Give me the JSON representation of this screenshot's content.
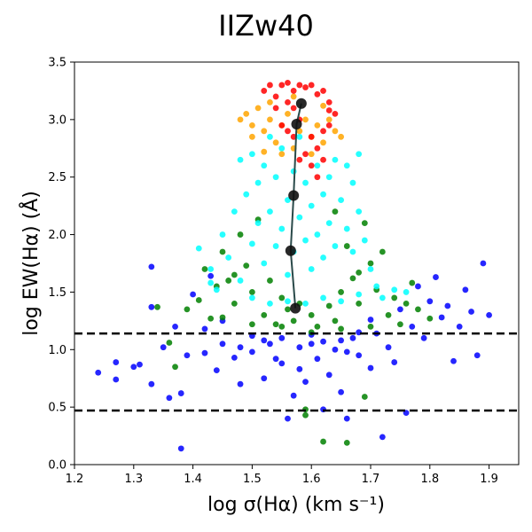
{
  "chart_data": {
    "type": "scatter",
    "title": "IIZw40",
    "xlabel": "log σ(Hα) (km s⁻¹)",
    "ylabel": "log EW(Hα) (Å)",
    "xlim": [
      1.2,
      1.95
    ],
    "ylim": [
      0.0,
      3.5
    ],
    "xticks": [
      "1.2",
      "1.3",
      "1.4",
      "1.5",
      "1.6",
      "1.7",
      "1.8",
      "1.9"
    ],
    "yticks": [
      "0.0",
      "0.5",
      "1.0",
      "1.5",
      "2.0",
      "2.5",
      "3.0",
      "3.5"
    ],
    "hlines": [
      1.14,
      0.47
    ],
    "series": [
      {
        "name": "blue",
        "color": "#0000ff",
        "points": [
          [
            1.24,
            0.8
          ],
          [
            1.27,
            0.74
          ],
          [
            1.27,
            0.89
          ],
          [
            1.3,
            0.85
          ],
          [
            1.31,
            0.87
          ],
          [
            1.33,
            0.7
          ],
          [
            1.33,
            1.37
          ],
          [
            1.33,
            1.72
          ],
          [
            1.35,
            1.02
          ],
          [
            1.36,
            0.58
          ],
          [
            1.37,
            1.2
          ],
          [
            1.38,
            0.14
          ],
          [
            1.38,
            0.62
          ],
          [
            1.39,
            0.95
          ],
          [
            1.4,
            1.48
          ],
          [
            1.42,
            0.97
          ],
          [
            1.43,
            1.64
          ],
          [
            1.44,
            0.82
          ],
          [
            1.45,
            1.25
          ],
          [
            1.47,
            0.93
          ],
          [
            1.48,
            0.7
          ],
          [
            1.5,
            0.98
          ],
          [
            1.52,
            0.75
          ],
          [
            1.53,
            1.05
          ],
          [
            1.54,
            0.92
          ],
          [
            1.55,
            0.88
          ],
          [
            1.56,
            0.4
          ],
          [
            1.57,
            0.6
          ],
          [
            1.58,
            1.02
          ],
          [
            1.59,
            0.72
          ],
          [
            1.6,
            1.05
          ],
          [
            1.61,
            0.92
          ],
          [
            1.62,
            0.48
          ],
          [
            1.63,
            0.78
          ],
          [
            1.64,
            1.0
          ],
          [
            1.65,
            0.63
          ],
          [
            1.66,
            0.4
          ],
          [
            1.67,
            1.1
          ],
          [
            1.68,
            0.95
          ],
          [
            1.7,
            0.84
          ],
          [
            1.71,
            1.14
          ],
          [
            1.72,
            0.24
          ],
          [
            1.73,
            1.02
          ],
          [
            1.74,
            0.89
          ],
          [
            1.75,
            1.35
          ],
          [
            1.76,
            0.45
          ],
          [
            1.77,
            1.2
          ],
          [
            1.78,
            1.55
          ],
          [
            1.79,
            1.1
          ],
          [
            1.8,
            1.42
          ],
          [
            1.81,
            1.63
          ],
          [
            1.82,
            1.28
          ],
          [
            1.83,
            1.38
          ],
          [
            1.84,
            0.9
          ],
          [
            1.85,
            1.2
          ],
          [
            1.86,
            1.52
          ],
          [
            1.87,
            1.33
          ],
          [
            1.88,
            0.95
          ],
          [
            1.89,
            1.75
          ],
          [
            1.9,
            1.3
          ],
          [
            1.5,
            1.12
          ],
          [
            1.55,
            1.1
          ],
          [
            1.6,
            1.13
          ],
          [
            1.65,
            1.08
          ],
          [
            1.45,
            1.05
          ],
          [
            1.52,
            1.08
          ],
          [
            1.62,
            1.07
          ],
          [
            1.68,
            1.15
          ],
          [
            1.42,
            1.18
          ],
          [
            1.58,
            0.83
          ],
          [
            1.48,
            1.02
          ],
          [
            1.66,
            0.98
          ],
          [
            1.7,
            1.26
          ]
        ]
      },
      {
        "name": "green",
        "color": "#008000",
        "points": [
          [
            1.34,
            1.37
          ],
          [
            1.36,
            1.06
          ],
          [
            1.37,
            0.85
          ],
          [
            1.39,
            1.35
          ],
          [
            1.41,
            1.43
          ],
          [
            1.42,
            1.7
          ],
          [
            1.43,
            1.27
          ],
          [
            1.44,
            1.55
          ],
          [
            1.45,
            1.85
          ],
          [
            1.46,
            1.6
          ],
          [
            1.47,
            1.4
          ],
          [
            1.48,
            2.0
          ],
          [
            1.49,
            1.73
          ],
          [
            1.5,
            1.5
          ],
          [
            1.51,
            2.13
          ],
          [
            1.52,
            1.3
          ],
          [
            1.53,
            1.6
          ],
          [
            1.54,
            1.22
          ],
          [
            1.55,
            1.45
          ],
          [
            1.56,
            1.35
          ],
          [
            1.57,
            1.25
          ],
          [
            1.58,
            1.4
          ],
          [
            1.59,
            0.48
          ],
          [
            1.6,
            1.3
          ],
          [
            1.61,
            1.2
          ],
          [
            1.62,
            0.2
          ],
          [
            1.63,
            1.38
          ],
          [
            1.64,
            1.25
          ],
          [
            1.65,
            1.5
          ],
          [
            1.66,
            0.19
          ],
          [
            1.66,
            1.9
          ],
          [
            1.67,
            1.62
          ],
          [
            1.68,
            1.4
          ],
          [
            1.69,
            2.1
          ],
          [
            1.7,
            1.75
          ],
          [
            1.71,
            1.52
          ],
          [
            1.72,
            1.85
          ],
          [
            1.73,
            1.3
          ],
          [
            1.74,
            1.45
          ],
          [
            1.75,
            1.22
          ],
          [
            1.76,
            1.4
          ],
          [
            1.77,
            1.58
          ],
          [
            1.78,
            1.35
          ],
          [
            1.8,
            1.27
          ],
          [
            1.69,
            0.59
          ],
          [
            1.59,
            0.43
          ],
          [
            1.45,
            1.28
          ],
          [
            1.5,
            1.22
          ],
          [
            1.55,
            1.2
          ],
          [
            1.6,
            1.15
          ],
          [
            1.65,
            1.18
          ],
          [
            1.7,
            1.2
          ],
          [
            1.47,
            1.65
          ],
          [
            1.68,
            1.67
          ],
          [
            1.64,
            2.2
          ]
        ]
      },
      {
        "name": "cyan",
        "color": "#00ffff",
        "points": [
          [
            1.41,
            1.88
          ],
          [
            1.43,
            1.7
          ],
          [
            1.44,
            1.52
          ],
          [
            1.45,
            2.0
          ],
          [
            1.46,
            1.8
          ],
          [
            1.47,
            2.2
          ],
          [
            1.48,
            1.6
          ],
          [
            1.48,
            2.65
          ],
          [
            1.49,
            2.35
          ],
          [
            1.5,
            1.92
          ],
          [
            1.5,
            2.7
          ],
          [
            1.51,
            2.1
          ],
          [
            1.51,
            2.45
          ],
          [
            1.52,
            1.75
          ],
          [
            1.52,
            2.6
          ],
          [
            1.53,
            2.2
          ],
          [
            1.53,
            2.85
          ],
          [
            1.54,
            1.9
          ],
          [
            1.54,
            2.5
          ],
          [
            1.55,
            2.05
          ],
          [
            1.55,
            2.75
          ],
          [
            1.56,
            2.3
          ],
          [
            1.56,
            1.65
          ],
          [
            1.57,
            2.55
          ],
          [
            1.57,
            1.85
          ],
          [
            1.58,
            2.15
          ],
          [
            1.58,
            2.85
          ],
          [
            1.59,
            1.95
          ],
          [
            1.59,
            2.45
          ],
          [
            1.6,
            2.25
          ],
          [
            1.6,
            1.7
          ],
          [
            1.61,
            2.6
          ],
          [
            1.61,
            2.0
          ],
          [
            1.62,
            2.35
          ],
          [
            1.62,
            1.8
          ],
          [
            1.63,
            2.5
          ],
          [
            1.63,
            2.1
          ],
          [
            1.64,
            2.65
          ],
          [
            1.64,
            1.9
          ],
          [
            1.65,
            2.3
          ],
          [
            1.66,
            2.05
          ],
          [
            1.66,
            2.6
          ],
          [
            1.67,
            1.85
          ],
          [
            1.67,
            2.45
          ],
          [
            1.68,
            2.2
          ],
          [
            1.68,
            2.7
          ],
          [
            1.69,
            1.95
          ],
          [
            1.7,
            1.7
          ],
          [
            1.71,
            1.55
          ],
          [
            1.72,
            1.45
          ],
          [
            1.5,
            1.45
          ],
          [
            1.53,
            1.4
          ],
          [
            1.56,
            1.42
          ],
          [
            1.59,
            1.4
          ],
          [
            1.62,
            1.45
          ],
          [
            1.65,
            1.42
          ],
          [
            1.68,
            1.48
          ],
          [
            1.74,
            1.52
          ],
          [
            1.76,
            1.5
          ],
          [
            1.43,
            1.58
          ]
        ]
      },
      {
        "name": "orange",
        "color": "#ffa500",
        "points": [
          [
            1.48,
            3.0
          ],
          [
            1.49,
            3.05
          ],
          [
            1.5,
            2.85
          ],
          [
            1.51,
            3.1
          ],
          [
            1.52,
            2.9
          ],
          [
            1.53,
            3.0
          ],
          [
            1.54,
            2.8
          ],
          [
            1.55,
            2.95
          ],
          [
            1.56,
            3.05
          ],
          [
            1.57,
            2.75
          ],
          [
            1.58,
            2.9
          ],
          [
            1.59,
            3.0
          ],
          [
            1.6,
            2.85
          ],
          [
            1.61,
            2.95
          ],
          [
            1.62,
            2.8
          ],
          [
            1.63,
            3.0
          ],
          [
            1.64,
            2.9
          ],
          [
            1.52,
            2.72
          ],
          [
            1.55,
            2.7
          ],
          [
            1.6,
            2.7
          ],
          [
            1.53,
            3.15
          ],
          [
            1.57,
            3.2
          ],
          [
            1.62,
            3.12
          ],
          [
            1.5,
            2.95
          ],
          [
            1.65,
            2.85
          ]
        ]
      },
      {
        "name": "red",
        "color": "#ff0000",
        "points": [
          [
            1.52,
            3.25
          ],
          [
            1.53,
            3.3
          ],
          [
            1.54,
            3.2
          ],
          [
            1.55,
            3.3
          ],
          [
            1.56,
            3.32
          ],
          [
            1.57,
            3.25
          ],
          [
            1.58,
            3.3
          ],
          [
            1.59,
            3.28
          ],
          [
            1.6,
            3.3
          ],
          [
            1.61,
            3.22
          ],
          [
            1.62,
            3.25
          ],
          [
            1.63,
            3.15
          ],
          [
            1.64,
            3.05
          ],
          [
            1.63,
            2.95
          ],
          [
            1.62,
            2.9
          ],
          [
            1.6,
            2.85
          ],
          [
            1.61,
            2.75
          ],
          [
            1.59,
            2.7
          ],
          [
            1.6,
            2.6
          ],
          [
            1.62,
            2.65
          ],
          [
            1.57,
            3.1
          ],
          [
            1.58,
            3.0
          ],
          [
            1.56,
            3.15
          ],
          [
            1.54,
            3.1
          ],
          [
            1.55,
            2.95
          ],
          [
            1.56,
            2.9
          ],
          [
            1.57,
            2.85
          ],
          [
            1.63,
            3.08
          ],
          [
            1.58,
            2.65
          ],
          [
            1.61,
            2.5
          ]
        ]
      }
    ],
    "median_line": {
      "name": "median",
      "color": "#000000",
      "points": [
        [
          1.573,
          1.36
        ],
        [
          1.565,
          1.86
        ],
        [
          1.57,
          2.34
        ],
        [
          1.575,
          2.96
        ],
        [
          1.583,
          3.14
        ]
      ]
    }
  }
}
